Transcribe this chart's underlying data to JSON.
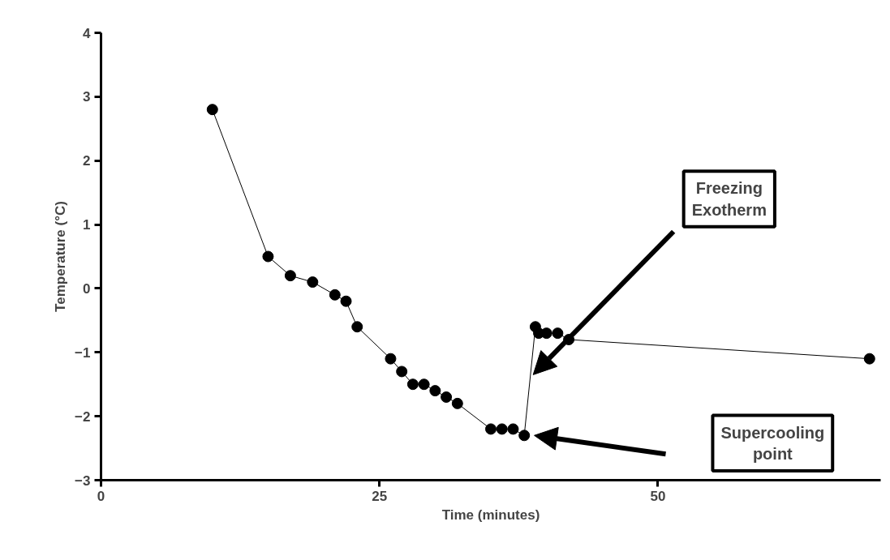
{
  "chart_data": {
    "type": "line",
    "xlabel": "Time (minutes)",
    "ylabel": "Temperature (°C)",
    "x": [
      10,
      15,
      17,
      19,
      21,
      22,
      23,
      26,
      27,
      28,
      29,
      30,
      31,
      32,
      35,
      36,
      37,
      38,
      39,
      39.3,
      40,
      41,
      42,
      69
    ],
    "series": [
      {
        "color": "#000000",
        "values": [
          2.8,
          0.5,
          0.2,
          0.1,
          -0.1,
          -0.2,
          -0.6,
          -1.1,
          -1.3,
          -1.5,
          -1.5,
          -1.6,
          -1.7,
          -1.8,
          -2.2,
          -2.2,
          -2.2,
          -2.3,
          -0.6,
          -0.7,
          -0.7,
          -0.7,
          -0.8,
          -1.1
        ]
      }
    ],
    "xlim": [
      0,
      70
    ],
    "xticks": [
      0,
      25,
      50
    ],
    "ylim": [
      -3,
      4
    ],
    "yticks": [
      -3,
      -2,
      -1,
      0,
      1,
      2,
      3,
      4
    ],
    "marker": "circle",
    "grid": false,
    "annotations": [
      "Freezing\nExotherm",
      "Supercooling\npoint"
    ]
  }
}
